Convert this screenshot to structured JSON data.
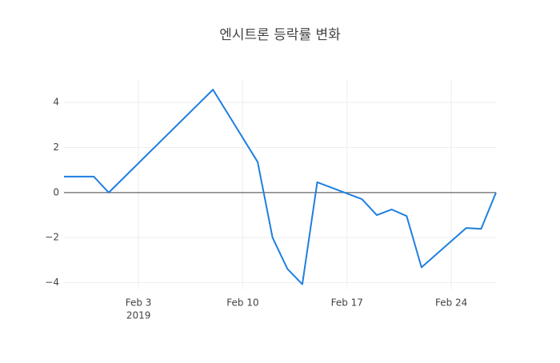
{
  "chart_data": {
    "type": "line",
    "title": "엔시트론 등락률 변화",
    "x": [
      "2019-01-29",
      "2019-01-31",
      "2019-02-01",
      "2019-02-08",
      "2019-02-11",
      "2019-02-12",
      "2019-02-13",
      "2019-02-14",
      "2019-02-15",
      "2019-02-18",
      "2019-02-19",
      "2019-02-20",
      "2019-02-21",
      "2019-02-22",
      "2019-02-25",
      "2019-02-26",
      "2019-02-27"
    ],
    "series": [
      {
        "color": "#1f7fe0",
        "values": [
          0.71,
          0.71,
          0,
          4.57,
          1.36,
          -2.0,
          -3.39,
          -4.07,
          0.46,
          -0.29,
          -1.0,
          -0.75,
          -1.04,
          -3.32,
          -1.57,
          -1.61,
          0.0
        ]
      }
    ],
    "xlim": [
      "2019-01-29",
      "2019-02-27"
    ],
    "xticks": [
      {
        "value": "2019-02-03",
        "label": "Feb 3",
        "sublabel": "2019"
      },
      {
        "value": "2019-02-10",
        "label": "Feb 10"
      },
      {
        "value": "2019-02-17",
        "label": "Feb 17"
      },
      {
        "value": "2019-02-24",
        "label": "Feb 24"
      }
    ],
    "ylim": [
      -4.3,
      5.0
    ],
    "yticks": [
      {
        "value": -4,
        "label": "−4"
      },
      {
        "value": -2,
        "label": "−2"
      },
      0,
      2,
      4
    ],
    "grid": true,
    "zeroline": true
  }
}
